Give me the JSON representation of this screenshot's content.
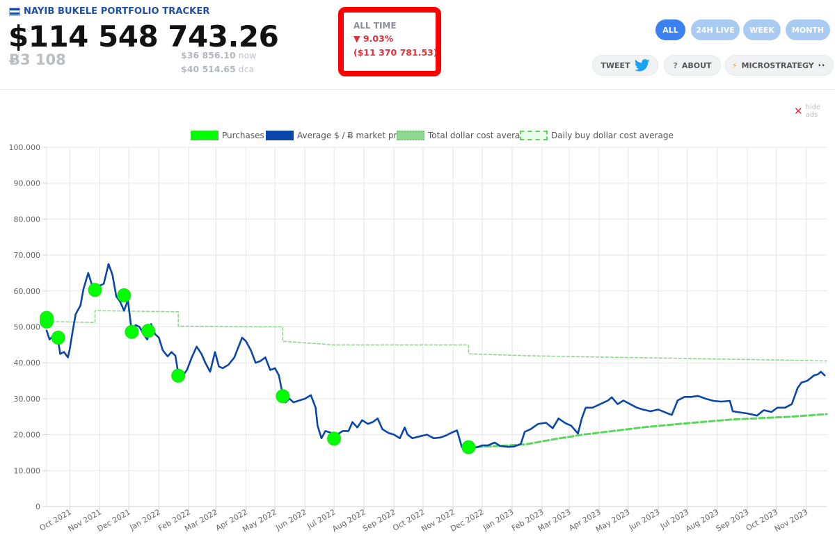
{
  "header": {
    "brand": "NAYIB BUKELE PORTFOLIO TRACKER",
    "total_value": "$114 548 743.26",
    "btc_amount": "Ƀ3 108",
    "price_now": "$36 856.10",
    "price_now_suffix": " now",
    "price_dca": "$40 514.65",
    "price_dca_suffix": " dca"
  },
  "all_time": {
    "label": "ALL TIME",
    "pct": "▼ 9.03%",
    "usd": "($11 370 781.53)",
    "highlight_color": "#ff0000",
    "negative_color": "#e0303a"
  },
  "range_buttons": [
    {
      "label": "ALL",
      "active": true
    },
    {
      "label": "24H LIVE",
      "active": false
    },
    {
      "label": "WEEK",
      "active": false
    },
    {
      "label": "MONTH",
      "active": false
    }
  ],
  "actions": {
    "tweet": "TWEET",
    "tweet_icon": "twitter-bird-icon",
    "about": "ABOUT",
    "about_icon": "question-icon",
    "microstrategy": "MICROSTRATEGY",
    "microstrategy_icon": "lightning-icon",
    "microstrategy_suffix": "👀"
  },
  "hide_ads": "hide ads",
  "chart_data": {
    "type": "line",
    "legend": [
      {
        "name": "Purchases",
        "color": "#00ff00",
        "style": "filled"
      },
      {
        "name": "Average $ / Ƀ market price",
        "color": "#0a47a9",
        "style": "filled"
      },
      {
        "name": "Total dollar cost average",
        "color": "#8fd88f",
        "style": "filled"
      },
      {
        "name": "Daily buy dollar cost average",
        "color": "#5ad65a",
        "style": "dashed"
      }
    ],
    "legend_position": "top",
    "grid": true,
    "ylim": [
      0,
      100000
    ],
    "yticks": [
      "0",
      "10.000",
      "20.000",
      "30.000",
      "40.000",
      "50.000",
      "60.000",
      "70.000",
      "80.000",
      "90.000",
      "100.000"
    ],
    "xlim": [
      "2021-09-07",
      "2023-11-22"
    ],
    "xticks": [
      "Oct 2021",
      "Nov 2021",
      "Dec 2021",
      "Jan 2022",
      "Feb 2022",
      "Mar 2022",
      "Apr 2022",
      "May 2022",
      "Jun 2022",
      "Jul 2022",
      "Aug 2022",
      "Sep 2022",
      "Oct 2022",
      "Nov 2022",
      "Dec 2022",
      "Jan 2023",
      "Feb 2023",
      "Mar 2023",
      "Apr 2023",
      "May 2023",
      "Jun 2023",
      "Jul 2023",
      "Aug 2023",
      "Sep 2023",
      "Oct 2023",
      "Nov 2023"
    ],
    "series": [
      {
        "name": "Average $ / Ƀ market price",
        "color": "#0a47a9",
        "points": [
          [
            "2021-09-07",
            49000
          ],
          [
            "2021-09-10",
            46500
          ],
          [
            "2021-09-14",
            47500
          ],
          [
            "2021-09-18",
            47800
          ],
          [
            "2021-09-21",
            42500
          ],
          [
            "2021-09-25",
            43000
          ],
          [
            "2021-09-29",
            41500
          ],
          [
            "2021-10-01",
            44000
          ],
          [
            "2021-10-04",
            49000
          ],
          [
            "2021-10-07",
            53500
          ],
          [
            "2021-10-12",
            56000
          ],
          [
            "2021-10-15",
            60500
          ],
          [
            "2021-10-20",
            65000
          ],
          [
            "2021-10-24",
            61500
          ],
          [
            "2021-10-28",
            61000
          ],
          [
            "2021-11-01",
            61500
          ],
          [
            "2021-11-05",
            62000
          ],
          [
            "2021-11-10",
            67500
          ],
          [
            "2021-11-14",
            64500
          ],
          [
            "2021-11-18",
            58500
          ],
          [
            "2021-11-22",
            57000
          ],
          [
            "2021-11-26",
            54500
          ],
          [
            "2021-11-30",
            57500
          ],
          [
            "2021-12-04",
            48500
          ],
          [
            "2021-12-08",
            50500
          ],
          [
            "2021-12-12",
            50000
          ],
          [
            "2021-12-16",
            48000
          ],
          [
            "2021-12-20",
            46500
          ],
          [
            "2021-12-24",
            50800
          ],
          [
            "2021-12-28",
            48000
          ],
          [
            "2022-01-01",
            47000
          ],
          [
            "2022-01-05",
            43500
          ],
          [
            "2022-01-10",
            41800
          ],
          [
            "2022-01-14",
            43000
          ],
          [
            "2022-01-18",
            42000
          ],
          [
            "2022-01-22",
            35500
          ],
          [
            "2022-01-26",
            36500
          ],
          [
            "2022-01-30",
            38000
          ],
          [
            "2022-02-04",
            41500
          ],
          [
            "2022-02-09",
            44500
          ],
          [
            "2022-02-14",
            42500
          ],
          [
            "2022-02-18",
            40000
          ],
          [
            "2022-02-23",
            37500
          ],
          [
            "2022-02-28",
            43000
          ],
          [
            "2022-03-04",
            39000
          ],
          [
            "2022-03-08",
            38500
          ],
          [
            "2022-03-14",
            39500
          ],
          [
            "2022-03-20",
            41500
          ],
          [
            "2022-03-28",
            47000
          ],
          [
            "2022-04-01",
            46000
          ],
          [
            "2022-04-06",
            43500
          ],
          [
            "2022-04-11",
            40000
          ],
          [
            "2022-04-16",
            40500
          ],
          [
            "2022-04-21",
            41500
          ],
          [
            "2022-04-26",
            38000
          ],
          [
            "2022-05-01",
            38500
          ],
          [
            "2022-05-05",
            36500
          ],
          [
            "2022-05-09",
            31000
          ],
          [
            "2022-05-12",
            29000
          ],
          [
            "2022-05-16",
            30000
          ],
          [
            "2022-05-20",
            29000
          ],
          [
            "2022-05-26",
            29500
          ],
          [
            "2022-06-01",
            30000
          ],
          [
            "2022-06-07",
            31000
          ],
          [
            "2022-06-12",
            27500
          ],
          [
            "2022-06-14",
            22500
          ],
          [
            "2022-06-18",
            19000
          ],
          [
            "2022-06-22",
            21000
          ],
          [
            "2022-06-28",
            20500
          ],
          [
            "2022-07-04",
            20000
          ],
          [
            "2022-07-10",
            21000
          ],
          [
            "2022-07-16",
            21000
          ],
          [
            "2022-07-20",
            23500
          ],
          [
            "2022-07-25",
            22000
          ],
          [
            "2022-07-30",
            24000
          ],
          [
            "2022-08-05",
            23000
          ],
          [
            "2022-08-10",
            23500
          ],
          [
            "2022-08-15",
            24500
          ],
          [
            "2022-08-20",
            21500
          ],
          [
            "2022-08-26",
            20500
          ],
          [
            "2022-09-01",
            20000
          ],
          [
            "2022-09-07",
            19000
          ],
          [
            "2022-09-12",
            22000
          ],
          [
            "2022-09-15",
            20000
          ],
          [
            "2022-09-20",
            19000
          ],
          [
            "2022-09-27",
            19500
          ],
          [
            "2022-10-05",
            20000
          ],
          [
            "2022-10-12",
            19000
          ],
          [
            "2022-10-19",
            19200
          ],
          [
            "2022-10-25",
            19800
          ],
          [
            "2022-10-30",
            20500
          ],
          [
            "2022-11-05",
            21200
          ],
          [
            "2022-11-08",
            18500
          ],
          [
            "2022-11-10",
            16500
          ],
          [
            "2022-11-14",
            16500
          ],
          [
            "2022-11-20",
            16300
          ],
          [
            "2022-11-26",
            16500
          ],
          [
            "2022-12-01",
            17000
          ],
          [
            "2022-12-07",
            17000
          ],
          [
            "2022-12-14",
            17800
          ],
          [
            "2022-12-20",
            16800
          ],
          [
            "2022-12-28",
            16600
          ],
          [
            "2023-01-03",
            16700
          ],
          [
            "2023-01-10",
            17400
          ],
          [
            "2023-01-14",
            20800
          ],
          [
            "2023-01-20",
            21500
          ],
          [
            "2023-01-28",
            23000
          ],
          [
            "2023-02-05",
            23300
          ],
          [
            "2023-02-12",
            21800
          ],
          [
            "2023-02-18",
            24500
          ],
          [
            "2023-02-25",
            23200
          ],
          [
            "2023-03-03",
            22500
          ],
          [
            "2023-03-10",
            20300
          ],
          [
            "2023-03-14",
            24500
          ],
          [
            "2023-03-18",
            27500
          ],
          [
            "2023-03-25",
            27500
          ],
          [
            "2023-04-02",
            28500
          ],
          [
            "2023-04-10",
            29500
          ],
          [
            "2023-04-14",
            30400
          ],
          [
            "2023-04-20",
            28500
          ],
          [
            "2023-04-26",
            29500
          ],
          [
            "2023-05-03",
            28500
          ],
          [
            "2023-05-10",
            27500
          ],
          [
            "2023-05-16",
            27000
          ],
          [
            "2023-05-24",
            26500
          ],
          [
            "2023-06-01",
            27000
          ],
          [
            "2023-06-10",
            26000
          ],
          [
            "2023-06-15",
            25500
          ],
          [
            "2023-06-21",
            29500
          ],
          [
            "2023-06-28",
            30500
          ],
          [
            "2023-07-05",
            30500
          ],
          [
            "2023-07-12",
            30800
          ],
          [
            "2023-07-20",
            30000
          ],
          [
            "2023-07-28",
            29400
          ],
          [
            "2023-08-05",
            29200
          ],
          [
            "2023-08-14",
            29400
          ],
          [
            "2023-08-17",
            26500
          ],
          [
            "2023-08-24",
            26200
          ],
          [
            "2023-09-01",
            25900
          ],
          [
            "2023-09-11",
            25300
          ],
          [
            "2023-09-18",
            26800
          ],
          [
            "2023-09-26",
            26300
          ],
          [
            "2023-10-02",
            27500
          ],
          [
            "2023-10-10",
            27500
          ],
          [
            "2023-10-17",
            28500
          ],
          [
            "2023-10-23",
            33000
          ],
          [
            "2023-10-27",
            34500
          ],
          [
            "2023-11-02",
            35000
          ],
          [
            "2023-11-09",
            36500
          ],
          [
            "2023-11-13",
            36800
          ],
          [
            "2023-11-16",
            37500
          ],
          [
            "2023-11-20",
            36500
          ]
        ]
      },
      {
        "name": "Total dollar cost average",
        "color": "#8fd88f",
        "points": [
          [
            "2021-09-07",
            51500
          ],
          [
            "2021-10-27",
            51200
          ],
          [
            "2021-10-27",
            54500
          ],
          [
            "2022-01-21",
            54200
          ],
          [
            "2022-01-21",
            50200
          ],
          [
            "2022-05-09",
            50000
          ],
          [
            "2022-05-09",
            46000
          ],
          [
            "2022-07-01",
            45000
          ],
          [
            "2022-11-17",
            45000
          ],
          [
            "2022-11-17",
            42500
          ],
          [
            "2023-01-15",
            42000
          ],
          [
            "2023-04-01",
            41600
          ],
          [
            "2023-07-01",
            41200
          ],
          [
            "2023-10-01",
            40800
          ],
          [
            "2023-11-22",
            40500
          ]
        ]
      },
      {
        "name": "Daily buy dollar cost average",
        "color": "#5ad65a",
        "points": [
          [
            "2022-11-17",
            16500
          ],
          [
            "2022-12-15",
            16800
          ],
          [
            "2023-01-15",
            17300
          ],
          [
            "2023-02-15",
            18800
          ],
          [
            "2023-03-15",
            20000
          ],
          [
            "2023-04-15",
            21000
          ],
          [
            "2023-05-15",
            22000
          ],
          [
            "2023-06-15",
            22800
          ],
          [
            "2023-07-15",
            23500
          ],
          [
            "2023-08-15",
            24200
          ],
          [
            "2023-09-15",
            24600
          ],
          [
            "2023-10-15",
            25000
          ],
          [
            "2023-11-22",
            25700
          ]
        ]
      }
    ],
    "purchases": [
      [
        "2021-09-07",
        51500
      ],
      [
        "2021-09-07",
        52500
      ],
      [
        "2021-09-19",
        47000
      ],
      [
        "2021-10-27",
        60300
      ],
      [
        "2021-11-26",
        58800
      ],
      [
        "2021-12-04",
        48600
      ],
      [
        "2021-12-21",
        48900
      ],
      [
        "2022-01-21",
        36400
      ],
      [
        "2022-05-09",
        30700
      ],
      [
        "2022-07-01",
        18900
      ],
      [
        "2022-11-17",
        16500
      ]
    ]
  }
}
